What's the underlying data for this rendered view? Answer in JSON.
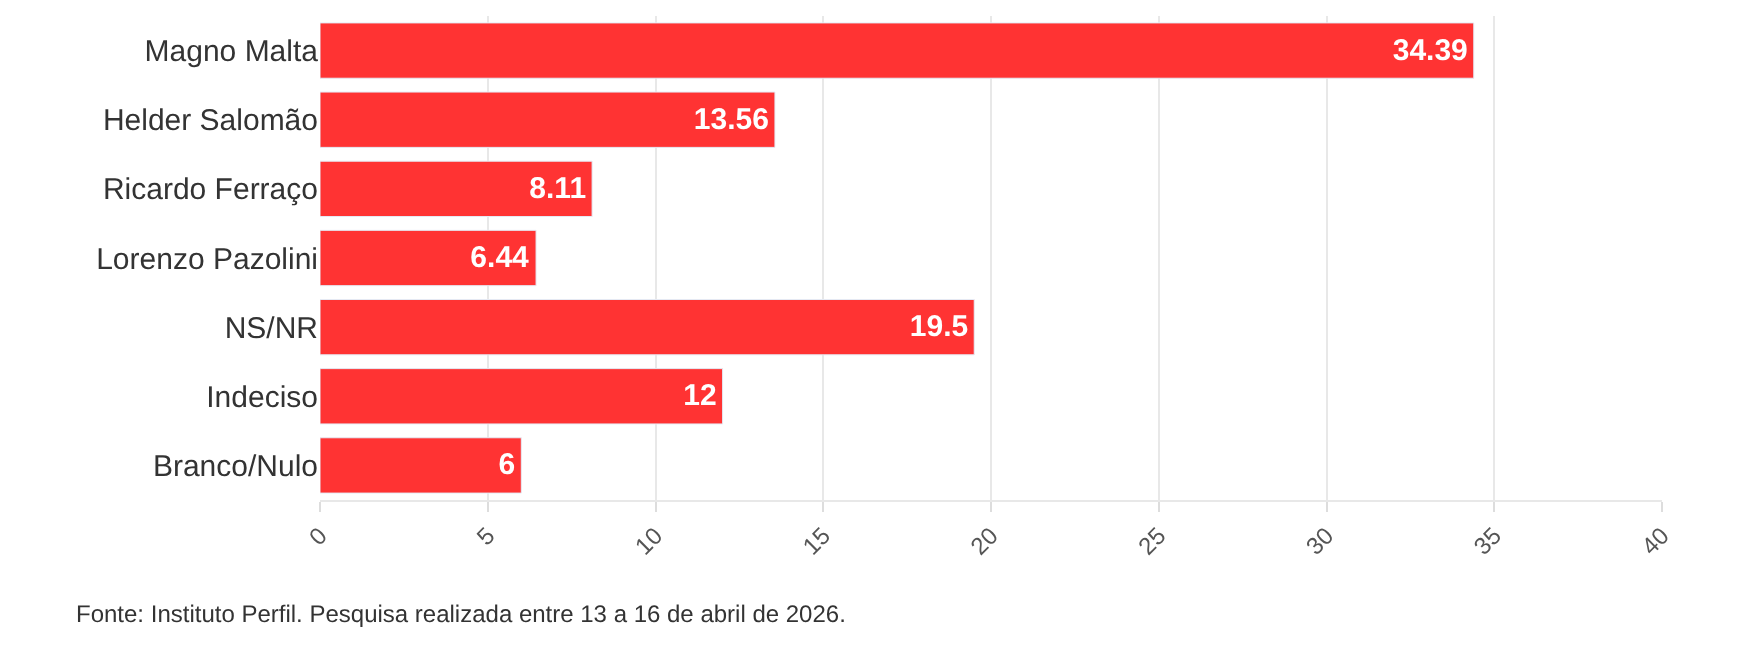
{
  "chart_data": {
    "type": "bar",
    "orientation": "horizontal",
    "categories": [
      "Magno Malta",
      "Helder Salomão",
      "Ricardo Ferraço",
      "Lorenzo Pazolini",
      "NS/NR",
      "Indeciso",
      "Branco/Nulo"
    ],
    "values": [
      34.39,
      13.56,
      8.11,
      6.44,
      19.5,
      12,
      6
    ],
    "color": "#ff3333",
    "xlim": [
      0,
      40
    ],
    "xticks": [
      0,
      5,
      10,
      15,
      20,
      25,
      30,
      35,
      40
    ],
    "grid": "x",
    "data_labels": true,
    "annotations": [
      "Fonte: Instituto Perfil. Pesquisa realizada entre 13 a 16 de abril de 2026."
    ]
  }
}
